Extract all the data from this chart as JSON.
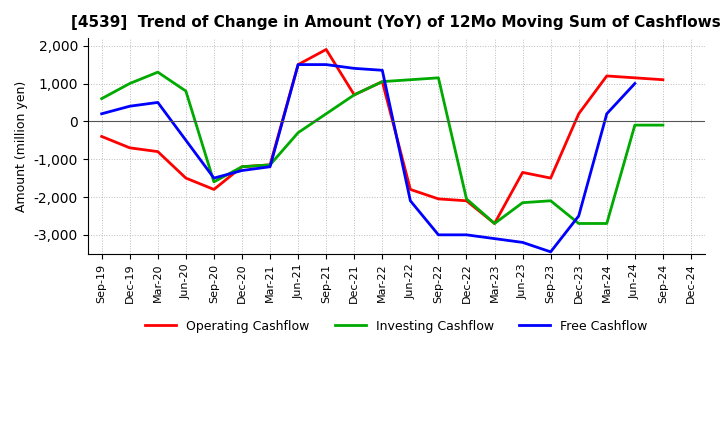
{
  "title": "[4539]  Trend of Change in Amount (YoY) of 12Mo Moving Sum of Cashflows",
  "ylabel": "Amount (million yen)",
  "labels": [
    "Sep-19",
    "Dec-19",
    "Mar-20",
    "Jun-20",
    "Sep-20",
    "Dec-20",
    "Mar-21",
    "Jun-21",
    "Sep-21",
    "Dec-21",
    "Mar-22",
    "Jun-22",
    "Sep-22",
    "Dec-22",
    "Mar-23",
    "Jun-23",
    "Sep-23",
    "Dec-23",
    "Mar-24",
    "Jun-24",
    "Sep-24",
    "Dec-24"
  ],
  "operating": [
    -400,
    -700,
    -800,
    -1500,
    -1800,
    -1200,
    -1150,
    1500,
    1900,
    700,
    1050,
    -1800,
    -2050,
    -2100,
    -2700,
    -1350,
    -1500,
    200,
    1200,
    1150,
    1100,
    null
  ],
  "investing": [
    600,
    1000,
    1300,
    800,
    -1600,
    -1200,
    -1150,
    -300,
    200,
    700,
    1050,
    1100,
    1150,
    -2050,
    -2700,
    -2150,
    -2100,
    -2700,
    -2700,
    -100,
    -100,
    null
  ],
  "free": [
    200,
    400,
    500,
    null,
    -1500,
    -1300,
    -1200,
    1500,
    1500,
    1400,
    1350,
    -2100,
    -3000,
    -3000,
    -3100,
    -3200,
    -3450,
    -2500,
    200,
    1000,
    null,
    null
  ],
  "operating_color": "#ff0000",
  "investing_color": "#00aa00",
  "free_color": "#0000ff",
  "ylim": [
    -3500,
    2200
  ],
  "yticks": [
    -3000,
    -2000,
    -1000,
    0,
    1000,
    2000
  ],
  "background_color": "#ffffff",
  "grid_color": "#bbbbbb"
}
